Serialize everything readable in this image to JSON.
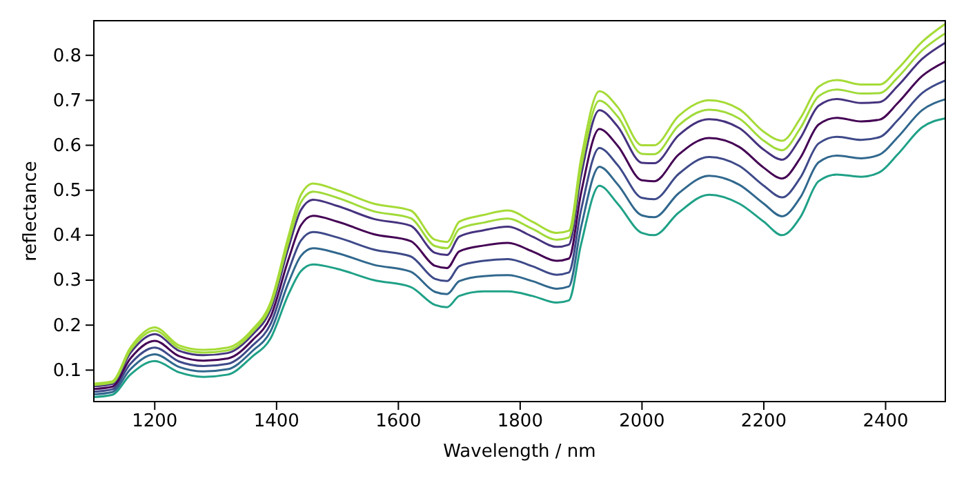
{
  "chart_data": {
    "type": "line",
    "xlabel": "Wavelength / nm",
    "ylabel": "reflectance",
    "x": [
      1100,
      1130,
      1160,
      1200,
      1240,
      1280,
      1320,
      1360,
      1390,
      1420,
      1440,
      1460,
      1500,
      1560,
      1620,
      1660,
      1680,
      1700,
      1740,
      1780,
      1820,
      1860,
      1880,
      1900,
      1930,
      1960,
      2000,
      2020,
      2060,
      2110,
      2160,
      2200,
      2230,
      2260,
      2290,
      2320,
      2360,
      2390,
      2420,
      2460,
      2498
    ],
    "xlim": [
      1100,
      2498
    ],
    "xticks": [
      1200,
      1400,
      1600,
      1800,
      2000,
      2200,
      2400
    ],
    "ylim": [
      0.03,
      0.877
    ],
    "yticks": [
      0.1,
      0.2,
      0.3,
      0.4,
      0.5,
      0.6,
      0.7,
      0.8
    ],
    "grid": false,
    "marker": "none",
    "line_style": "solid",
    "series": [
      {
        "color": "#1fa187",
        "values": [
          0.04,
          0.045,
          0.09,
          0.12,
          0.095,
          0.085,
          0.09,
          0.13,
          0.17,
          0.27,
          0.32,
          0.335,
          0.325,
          0.3,
          0.285,
          0.245,
          0.24,
          0.265,
          0.275,
          0.275,
          0.265,
          0.25,
          0.255,
          0.38,
          0.51,
          0.47,
          0.405,
          0.4,
          0.45,
          0.49,
          0.47,
          0.43,
          0.4,
          0.44,
          0.52,
          0.535,
          0.53,
          0.54,
          0.58,
          0.64,
          0.66
        ]
      },
      {
        "color": "#31688e",
        "values": [
          0.046,
          0.051,
          0.102,
          0.135,
          0.107,
          0.097,
          0.102,
          0.142,
          0.186,
          0.296,
          0.354,
          0.371,
          0.36,
          0.334,
          0.319,
          0.274,
          0.269,
          0.298,
          0.309,
          0.311,
          0.298,
          0.281,
          0.286,
          0.418,
          0.552,
          0.513,
          0.444,
          0.44,
          0.493,
          0.532,
          0.512,
          0.47,
          0.442,
          0.484,
          0.562,
          0.577,
          0.571,
          0.579,
          0.618,
          0.678,
          0.702
        ]
      },
      {
        "color": "#3e4a89",
        "values": [
          0.052,
          0.057,
          0.114,
          0.15,
          0.119,
          0.109,
          0.114,
          0.154,
          0.202,
          0.322,
          0.388,
          0.407,
          0.395,
          0.368,
          0.353,
          0.303,
          0.298,
          0.331,
          0.343,
          0.347,
          0.331,
          0.312,
          0.317,
          0.456,
          0.594,
          0.556,
          0.483,
          0.48,
          0.536,
          0.574,
          0.554,
          0.51,
          0.484,
          0.528,
          0.604,
          0.619,
          0.612,
          0.618,
          0.656,
          0.716,
          0.744
        ]
      },
      {
        "color": "#440154",
        "values": [
          0.058,
          0.063,
          0.126,
          0.165,
          0.131,
          0.121,
          0.126,
          0.166,
          0.218,
          0.348,
          0.422,
          0.443,
          0.43,
          0.402,
          0.387,
          0.332,
          0.327,
          0.364,
          0.377,
          0.383,
          0.364,
          0.343,
          0.348,
          0.494,
          0.636,
          0.599,
          0.522,
          0.52,
          0.579,
          0.616,
          0.596,
          0.55,
          0.526,
          0.572,
          0.646,
          0.661,
          0.653,
          0.657,
          0.694,
          0.754,
          0.786
        ]
      },
      {
        "color": "#46337f",
        "values": [
          0.064,
          0.069,
          0.138,
          0.18,
          0.143,
          0.133,
          0.138,
          0.178,
          0.234,
          0.374,
          0.456,
          0.479,
          0.465,
          0.436,
          0.421,
          0.361,
          0.356,
          0.397,
          0.411,
          0.419,
          0.397,
          0.374,
          0.379,
          0.532,
          0.678,
          0.642,
          0.561,
          0.56,
          0.622,
          0.658,
          0.638,
          0.59,
          0.568,
          0.616,
          0.688,
          0.703,
          0.694,
          0.696,
          0.732,
          0.792,
          0.828
        ]
      },
      {
        "color": "#a0da39",
        "values": [
          0.067,
          0.072,
          0.144,
          0.188,
          0.149,
          0.139,
          0.144,
          0.184,
          0.242,
          0.387,
          0.473,
          0.497,
          0.483,
          0.453,
          0.438,
          0.376,
          0.371,
          0.414,
          0.428,
          0.437,
          0.414,
          0.39,
          0.395,
          0.551,
          0.699,
          0.664,
          0.581,
          0.58,
          0.644,
          0.679,
          0.659,
          0.61,
          0.589,
          0.638,
          0.709,
          0.724,
          0.715,
          0.716,
          0.751,
          0.811,
          0.849
        ]
      },
      {
        "color": "#a5db36",
        "values": [
          0.07,
          0.075,
          0.15,
          0.195,
          0.155,
          0.145,
          0.15,
          0.19,
          0.25,
          0.4,
          0.49,
          0.515,
          0.5,
          0.47,
          0.455,
          0.39,
          0.385,
          0.43,
          0.445,
          0.455,
          0.43,
          0.405,
          0.41,
          0.57,
          0.72,
          0.685,
          0.6,
          0.6,
          0.665,
          0.7,
          0.68,
          0.63,
          0.61,
          0.66,
          0.73,
          0.745,
          0.735,
          0.735,
          0.77,
          0.83,
          0.87
        ]
      }
    ]
  }
}
